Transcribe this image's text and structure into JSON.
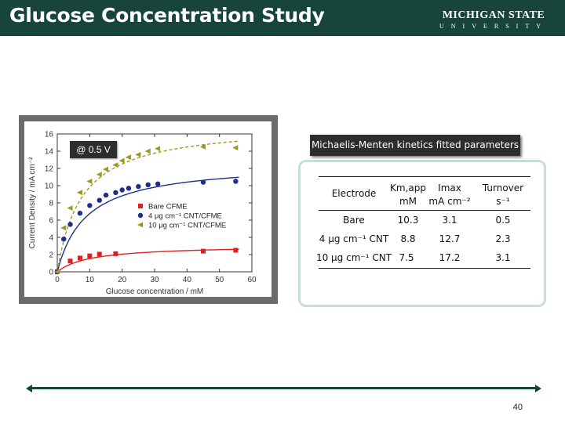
{
  "header": {
    "title": "Glucose Concentration Study",
    "logo_line1": "MICHIGAN STATE",
    "logo_line2": "UNIVERSITY"
  },
  "voltage_label": "@ 0.5 V",
  "table": {
    "title": "Michaelis-Menten kinetics fitted parameters",
    "headers": [
      {
        "main": "Electrode",
        "unit": ""
      },
      {
        "main": "Km,app",
        "unit": "mM"
      },
      {
        "main": "Imax",
        "unit": "mA cm⁻²"
      },
      {
        "main": "Turnover",
        "unit": "s⁻¹"
      }
    ],
    "rows": [
      [
        "Bare",
        "10.3",
        "3.1",
        "0.5"
      ],
      [
        "4 μg cm⁻¹ CNT",
        "8.8",
        "12.7",
        "2.3"
      ],
      [
        "10 μg cm⁻¹ CNT",
        "7.5",
        "17.2",
        "3.1"
      ]
    ]
  },
  "page_number": "40",
  "colors": {
    "header": "#17453b",
    "bare": "#e02020",
    "cnt4": "#1e2f8a",
    "cnt10": "#9a9a20"
  },
  "chart_data": {
    "type": "scatter",
    "title": "",
    "xlabel": "Glucose concentration / mM",
    "ylabel": "Current Density / mA cm⁻²",
    "xlim": [
      0,
      60
    ],
    "ylim": [
      0,
      16
    ],
    "xticks": [
      0,
      10,
      20,
      30,
      40,
      50,
      60
    ],
    "yticks": [
      0,
      2,
      4,
      6,
      8,
      10,
      12,
      14,
      16
    ],
    "legend_position": "center-right",
    "series": [
      {
        "name": "Bare CFME",
        "marker": "square",
        "color": "#e02020",
        "x": [
          0,
          4,
          7,
          10,
          13,
          18,
          45,
          55
        ],
        "y": [
          0,
          1.25,
          1.6,
          1.85,
          2.05,
          2.1,
          2.4,
          2.5
        ],
        "fit": {
          "vmax": 3.1,
          "km": 10.3
        }
      },
      {
        "name": "4 μg cm⁻¹ CNT/CFME",
        "marker": "circle",
        "color": "#1e2f8a",
        "x": [
          0,
          2,
          4,
          7,
          10,
          13,
          15,
          18,
          20,
          22,
          25,
          28,
          31,
          45,
          55
        ],
        "y": [
          0,
          3.8,
          5.5,
          6.8,
          7.7,
          8.3,
          8.9,
          9.2,
          9.5,
          9.7,
          9.9,
          10.1,
          10.2,
          10.4,
          10.5
        ],
        "fit": {
          "vmax": 12.7,
          "km": 8.8
        }
      },
      {
        "name": "10 μg cm⁻¹ CNT/CFME",
        "marker": "triangle-left",
        "color": "#9a9a20",
        "x": [
          0,
          2,
          4,
          7,
          10,
          13,
          15,
          18,
          20,
          22,
          25,
          28,
          31,
          45,
          55
        ],
        "y": [
          0,
          5.1,
          7.4,
          9.2,
          10.5,
          11.3,
          11.9,
          12.4,
          12.9,
          13.3,
          13.6,
          14,
          14.3,
          14.5,
          14.4
        ],
        "fit": {
          "vmax": 17.2,
          "km": 7.5
        }
      }
    ]
  }
}
